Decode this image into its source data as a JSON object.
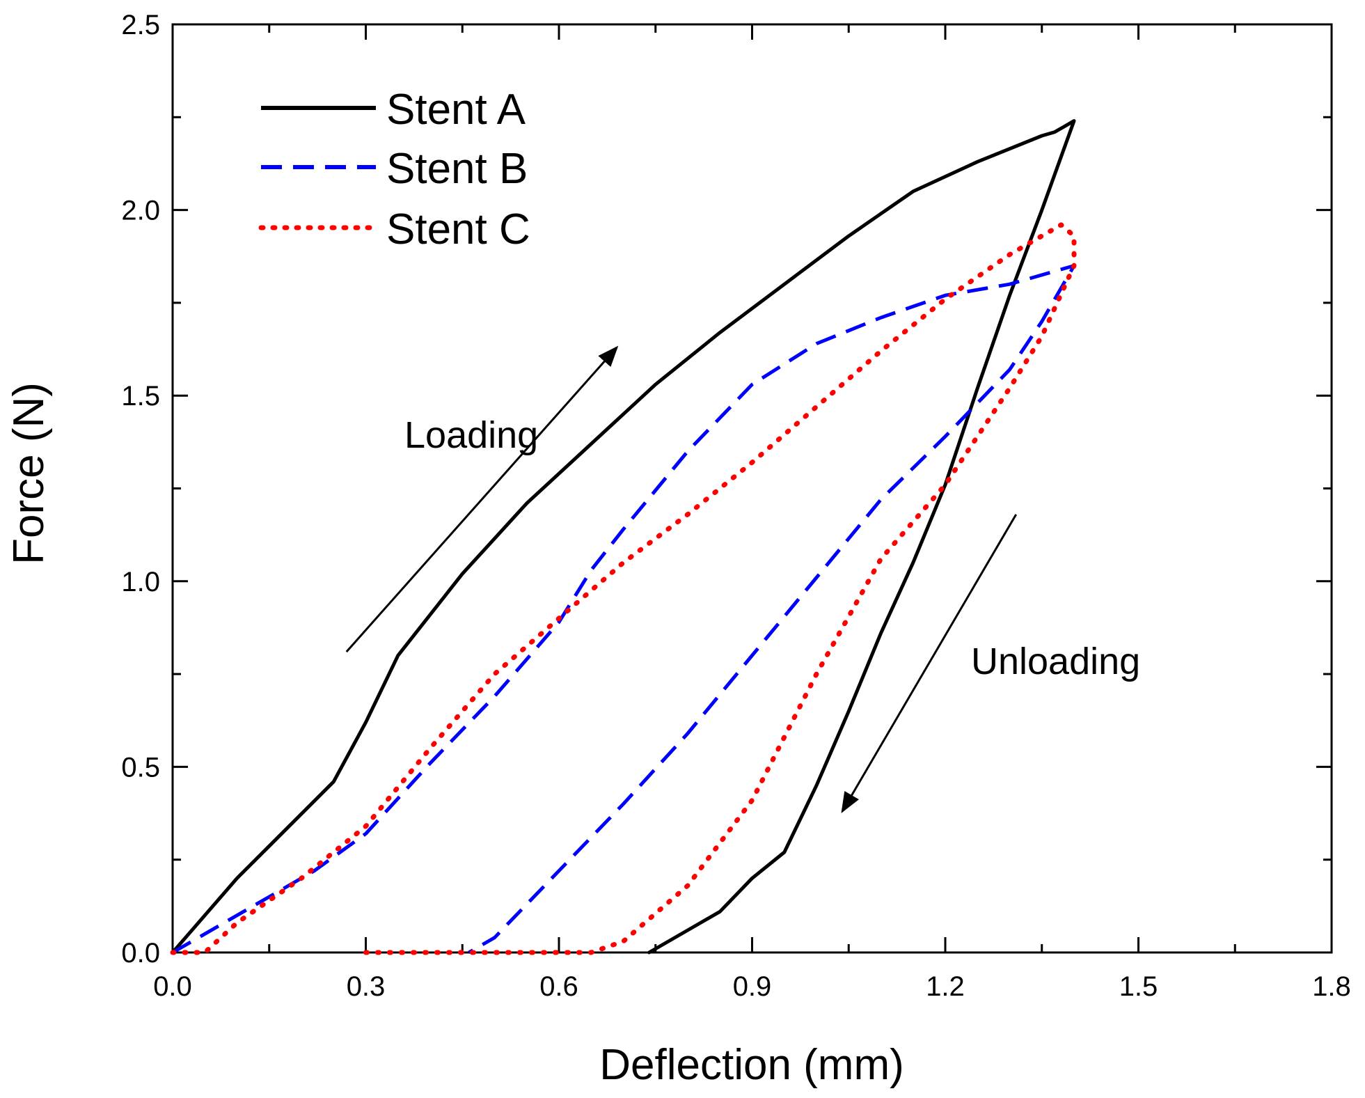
{
  "chart_data": {
    "type": "line",
    "xlabel": "Deflection (mm)",
    "ylabel": "Force (N)",
    "xlim": [
      0,
      1.8
    ],
    "ylim": [
      0,
      2.5
    ],
    "xticks": [
      0.0,
      0.3,
      0.6,
      0.9,
      1.2,
      1.5,
      1.8
    ],
    "xtick_labels": [
      "0.0",
      "0.3",
      "0.6",
      "0.9",
      "1.2",
      "1.5",
      "1.8"
    ],
    "yticks": [
      0.0,
      0.5,
      1.0,
      1.5,
      2.0,
      2.5
    ],
    "ytick_labels": [
      "0.0",
      "0.5",
      "1.0",
      "1.5",
      "2.0",
      "2.5"
    ],
    "legend_position": "top-left",
    "series": [
      {
        "name": "Stent A",
        "color": "#000000",
        "style": "solid",
        "x": [
          0.0,
          0.1,
          0.25,
          0.3,
          0.35,
          0.45,
          0.55,
          0.65,
          0.75,
          0.85,
          0.95,
          1.05,
          1.15,
          1.25,
          1.35,
          1.37,
          1.4,
          1.35,
          1.3,
          1.25,
          1.2,
          1.15,
          1.1,
          1.05,
          1.0,
          0.95,
          0.9,
          0.85,
          0.8,
          0.74
        ],
        "y": [
          0.0,
          0.2,
          0.46,
          0.62,
          0.8,
          1.02,
          1.21,
          1.37,
          1.53,
          1.67,
          1.8,
          1.93,
          2.05,
          2.13,
          2.2,
          2.21,
          2.24,
          2.0,
          1.77,
          1.52,
          1.26,
          1.05,
          0.86,
          0.65,
          0.45,
          0.27,
          0.2,
          0.11,
          0.06,
          0.0
        ]
      },
      {
        "name": "Stent B",
        "color": "#0000ff",
        "style": "dashed",
        "x": [
          0.0,
          0.1,
          0.22,
          0.3,
          0.4,
          0.5,
          0.6,
          0.65,
          0.7,
          0.8,
          0.9,
          1.0,
          1.1,
          1.2,
          1.3,
          1.4,
          1.35,
          1.3,
          1.2,
          1.1,
          1.0,
          0.9,
          0.8,
          0.7,
          0.6,
          0.5,
          0.46
        ],
        "y": [
          0.0,
          0.1,
          0.22,
          0.32,
          0.51,
          0.69,
          0.89,
          1.03,
          1.14,
          1.35,
          1.53,
          1.64,
          1.71,
          1.77,
          1.8,
          1.85,
          1.7,
          1.57,
          1.39,
          1.22,
          1.01,
          0.8,
          0.59,
          0.4,
          0.22,
          0.04,
          0.0
        ]
      },
      {
        "name": "Stent C",
        "color": "#ff0000",
        "style": "dotted",
        "x": [
          0.0,
          0.05,
          0.1,
          0.2,
          0.3,
          0.4,
          0.5,
          0.6,
          0.7,
          0.8,
          0.9,
          1.0,
          1.1,
          1.2,
          1.3,
          1.38,
          1.4,
          1.4,
          1.35,
          1.3,
          1.2,
          1.1,
          1.0,
          0.9,
          0.8,
          0.7,
          0.65,
          0.3
        ],
        "y": [
          0.0,
          0.0,
          0.08,
          0.2,
          0.34,
          0.55,
          0.75,
          0.9,
          1.05,
          1.18,
          1.32,
          1.47,
          1.62,
          1.76,
          1.88,
          1.96,
          1.93,
          1.85,
          1.66,
          1.52,
          1.26,
          1.06,
          0.75,
          0.41,
          0.18,
          0.03,
          0.0,
          0.0
        ]
      }
    ],
    "annotations": [
      {
        "text": "Loading",
        "x": 0.36,
        "y": 1.36
      },
      {
        "text": "Unloading",
        "x": 1.24,
        "y": 0.75
      }
    ],
    "arrows": [
      {
        "name": "loading-arrow",
        "from": [
          0.27,
          0.81
        ],
        "to": [
          0.69,
          1.63
        ]
      },
      {
        "name": "unloading-arrow",
        "from": [
          1.31,
          1.18
        ],
        "to": [
          1.04,
          0.38
        ]
      }
    ]
  }
}
